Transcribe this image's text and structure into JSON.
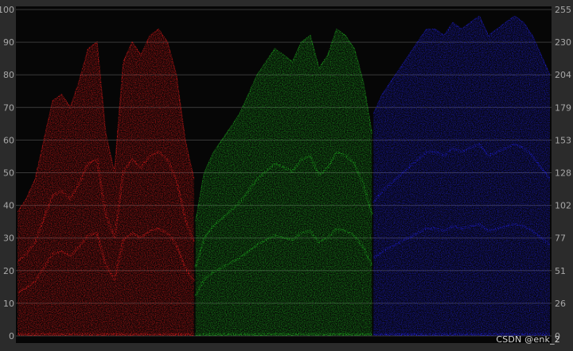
{
  "chart_data": {
    "type": "area",
    "title": "",
    "xlabel": "",
    "ylabel": "",
    "ylim": [
      0,
      100
    ],
    "ylim_right": [
      0,
      255
    ],
    "grid": true,
    "left_ticks": [
      "0",
      "10",
      "20",
      "30",
      "40",
      "50",
      "60",
      "70",
      "80",
      "90",
      "100"
    ],
    "right_ticks": [
      "0",
      "26",
      "51",
      "77",
      "102",
      "128",
      "153",
      "179",
      "204",
      "230",
      "255"
    ],
    "x": [
      0,
      0.05,
      0.1,
      0.15,
      0.2,
      0.25,
      0.3,
      0.35,
      0.4,
      0.45,
      0.5,
      0.55,
      0.6,
      0.65,
      0.7,
      0.75,
      0.8,
      0.85,
      0.9,
      0.95,
      1
    ],
    "series": [
      {
        "color": "#ff1a1a",
        "values": [
          38,
          42,
          48,
          60,
          72,
          74,
          70,
          78,
          88,
          90,
          62,
          50,
          84,
          90,
          86,
          92,
          94,
          90,
          80,
          60,
          48
        ]
      },
      {
        "color": "#22cc22",
        "values": [
          35,
          50,
          56,
          60,
          64,
          68,
          74,
          80,
          84,
          88,
          86,
          84,
          90,
          92,
          82,
          86,
          94,
          92,
          88,
          78,
          62
        ]
      },
      {
        "color": "#2222ff",
        "values": [
          68,
          74,
          78,
          82,
          86,
          90,
          94,
          94,
          92,
          96,
          94,
          96,
          98,
          92,
          94,
          96,
          98,
          96,
          92,
          86,
          80
        ]
      }
    ]
  },
  "watermark": "CSDN @enk_2",
  "colors": {
    "background": "#2b2b2b",
    "plot": "#060606",
    "grid": "#3a3a3a"
  }
}
